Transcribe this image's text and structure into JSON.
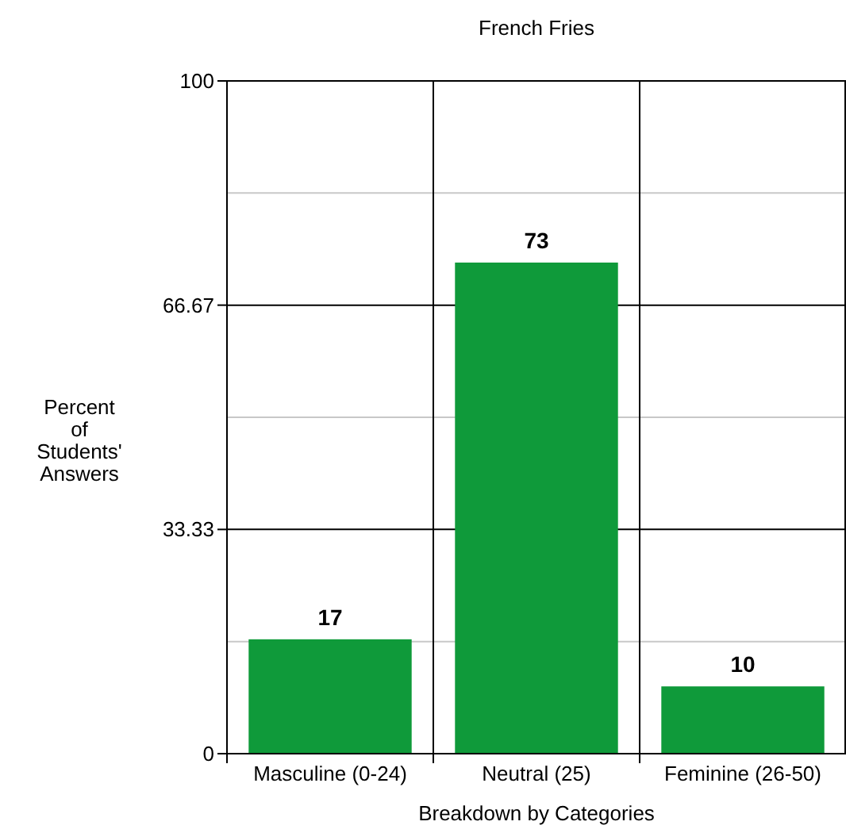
{
  "chart_data": {
    "type": "bar",
    "title": "French Fries",
    "xlabel": "Breakdown by Categories",
    "ylabel": "Percent of Students' Answers",
    "categories": [
      "Masculine (0-24)",
      "Neutral (25)",
      "Feminine (26-50)"
    ],
    "values": [
      17,
      73,
      10
    ],
    "color": "#0f9a3a",
    "data_labels": true,
    "ylim": [
      0,
      100
    ],
    "yticks": [
      0,
      {
        "value": 16.67,
        "label": null
      },
      33.33,
      {
        "value": 50,
        "label": null
      },
      66.67,
      {
        "value": 83.33,
        "label": null
      },
      100
    ],
    "grid": true
  }
}
